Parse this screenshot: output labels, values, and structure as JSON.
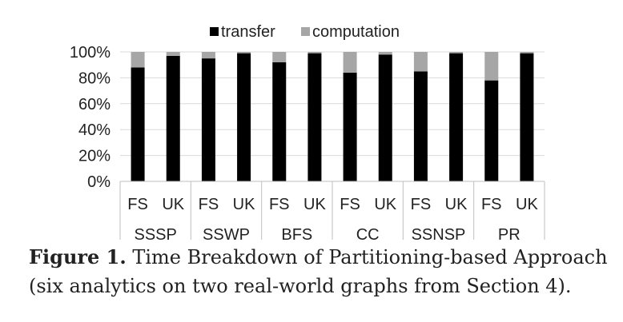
{
  "chart_data": {
    "type": "bar",
    "stacked": true,
    "percent": true,
    "groups": [
      "SSSP",
      "SSWP",
      "BFS",
      "CC",
      "SSNSP",
      "PR"
    ],
    "categories": [
      "FS",
      "UK",
      "FS",
      "UK",
      "FS",
      "UK",
      "FS",
      "UK",
      "FS",
      "UK",
      "FS",
      "UK"
    ],
    "series": [
      {
        "name": "transfer",
        "color": "#000000",
        "values": [
          88,
          97,
          95,
          99,
          92,
          99,
          84,
          98,
          85,
          99,
          78,
          99
        ]
      },
      {
        "name": "computation",
        "color": "#a6a6a6",
        "values": [
          12,
          3,
          5,
          1,
          8,
          1,
          16,
          2,
          15,
          1,
          22,
          1
        ]
      }
    ],
    "ylim": [
      0,
      100
    ],
    "yticks": [
      "0%",
      "20%",
      "40%",
      "60%",
      "80%",
      "100%"
    ],
    "grid": true,
    "legend": "top"
  },
  "caption": {
    "lead": "Figure 1.",
    "text": " Time Breakdown of Partitioning-based Approach (six analytics on two real-world graphs from Section 4)."
  }
}
